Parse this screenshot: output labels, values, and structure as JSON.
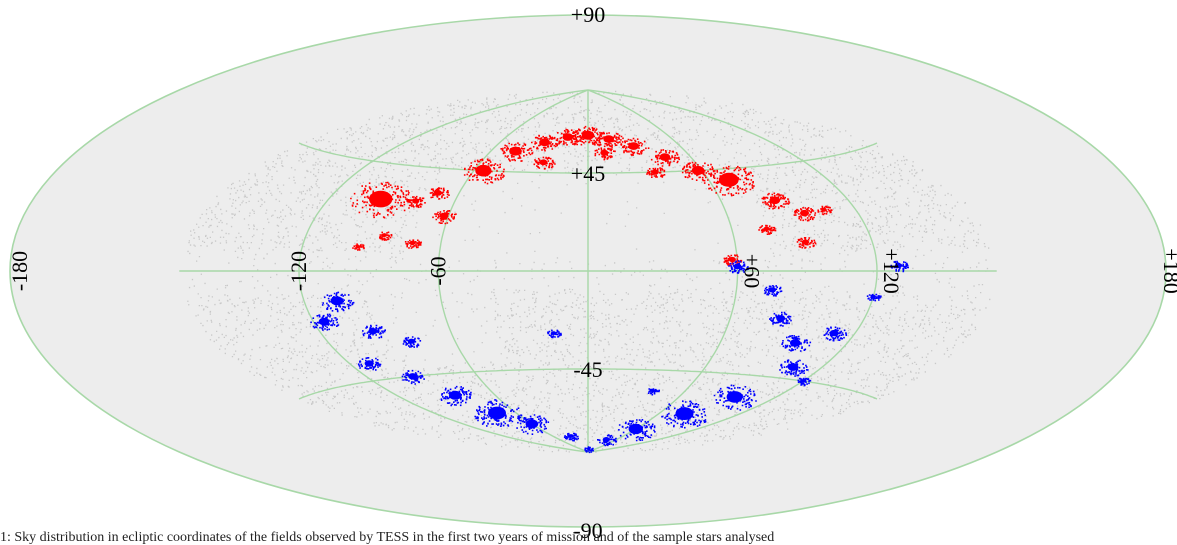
{
  "chart_data": {
    "type": "scatter",
    "projection": "Aitoff (all-sky ellipse)",
    "grid": true,
    "colors": {
      "background_sources": "#c8c8c8",
      "grid": "#a8d8a8",
      "northern_fields": "#ff0000",
      "southern_fields": "#0000ff"
    },
    "lon_ticks": [
      "-180",
      "-120",
      "-60",
      "+60",
      "+120",
      "+180"
    ],
    "lon_tick_values": [
      -180,
      -120,
      -60,
      60,
      120,
      180
    ],
    "lat_ticks": [
      "+90",
      "+45",
      "-45",
      "-90"
    ],
    "lat_tick_values": [
      90,
      45,
      -45,
      -90
    ],
    "xlim": [
      -180,
      180
    ],
    "ylim": [
      -90,
      90
    ],
    "series": [
      {
        "color": "#ff0000",
        "clusters": [
          {
            "lon": -95,
            "lat": 30,
            "size": 26
          },
          {
            "lon": -78,
            "lat": 30,
            "size": 8
          },
          {
            "lon": -70,
            "lat": 34,
            "size": 9
          },
          {
            "lon": -62,
            "lat": 24,
            "size": 10
          },
          {
            "lon": -85,
            "lat": 15,
            "size": 6
          },
          {
            "lon": -72,
            "lat": 12,
            "size": 7
          },
          {
            "lon": -95,
            "lat": 10,
            "size": 5
          },
          {
            "lon": -55,
            "lat": 45,
            "size": 18
          },
          {
            "lon": -45,
            "lat": 55,
            "size": 14
          },
          {
            "lon": -30,
            "lat": 60,
            "size": 12
          },
          {
            "lon": -15,
            "lat": 63,
            "size": 12
          },
          {
            "lon": 0,
            "lat": 64,
            "size": 14
          },
          {
            "lon": 15,
            "lat": 62,
            "size": 12
          },
          {
            "lon": 30,
            "lat": 58,
            "size": 12
          },
          {
            "lon": 45,
            "lat": 52,
            "size": 12
          },
          {
            "lon": 58,
            "lat": 45,
            "size": 14
          },
          {
            "lon": 70,
            "lat": 40,
            "size": 22
          },
          {
            "lon": 85,
            "lat": 30,
            "size": 12
          },
          {
            "lon": 95,
            "lat": 24,
            "size": 10
          },
          {
            "lon": 105,
            "lat": 25,
            "size": 6
          },
          {
            "lon": 75,
            "lat": 18,
            "size": 7
          },
          {
            "lon": 90,
            "lat": 12,
            "size": 8
          },
          {
            "lon": 58,
            "lat": 5,
            "size": 8
          },
          {
            "lon": -25,
            "lat": 50,
            "size": 9
          },
          {
            "lon": 10,
            "lat": 55,
            "size": 9
          },
          {
            "lon": 35,
            "lat": 45,
            "size": 8
          }
        ]
      },
      {
        "color": "#0000ff",
        "clusters": [
          {
            "lon": -105,
            "lat": -12,
            "size": 14
          },
          {
            "lon": -115,
            "lat": -20,
            "size": 12
          },
          {
            "lon": -95,
            "lat": -25,
            "size": 10
          },
          {
            "lon": -80,
            "lat": -30,
            "size": 8
          },
          {
            "lon": -110,
            "lat": -38,
            "size": 10
          },
          {
            "lon": -95,
            "lat": -45,
            "size": 10
          },
          {
            "lon": -85,
            "lat": -55,
            "size": 14
          },
          {
            "lon": -75,
            "lat": -65,
            "size": 20
          },
          {
            "lon": -60,
            "lat": -72,
            "size": 14
          },
          {
            "lon": -30,
            "lat": -80,
            "size": 6
          },
          {
            "lon": 5,
            "lat": -88,
            "size": 4
          },
          {
            "lon": -15,
            "lat": -28,
            "size": 6
          },
          {
            "lon": 40,
            "lat": -55,
            "size": 5
          },
          {
            "lon": 75,
            "lat": -8,
            "size": 8
          },
          {
            "lon": 82,
            "lat": -20,
            "size": 10
          },
          {
            "lon": 95,
            "lat": -30,
            "size": 12
          },
          {
            "lon": 110,
            "lat": -25,
            "size": 10
          },
          {
            "lon": 105,
            "lat": -40,
            "size": 12
          },
          {
            "lon": 95,
            "lat": -55,
            "size": 18
          },
          {
            "lon": 80,
            "lat": -65,
            "size": 20
          },
          {
            "lon": 60,
            "lat": -75,
            "size": 16
          },
          {
            "lon": 40,
            "lat": -82,
            "size": 8
          },
          {
            "lon": 130,
            "lat": 2,
            "size": 8
          },
          {
            "lon": 120,
            "lat": -10,
            "size": 6
          },
          {
            "lon": 60,
            "lat": 2,
            "size": 9
          },
          {
            "lon": 120,
            "lat": -45,
            "size": 6
          }
        ]
      }
    ]
  },
  "caption_text": "1: Sky distribution in ecliptic coordinates of the fields observed by TESS in the first two years of mission and of the sample stars analysed"
}
